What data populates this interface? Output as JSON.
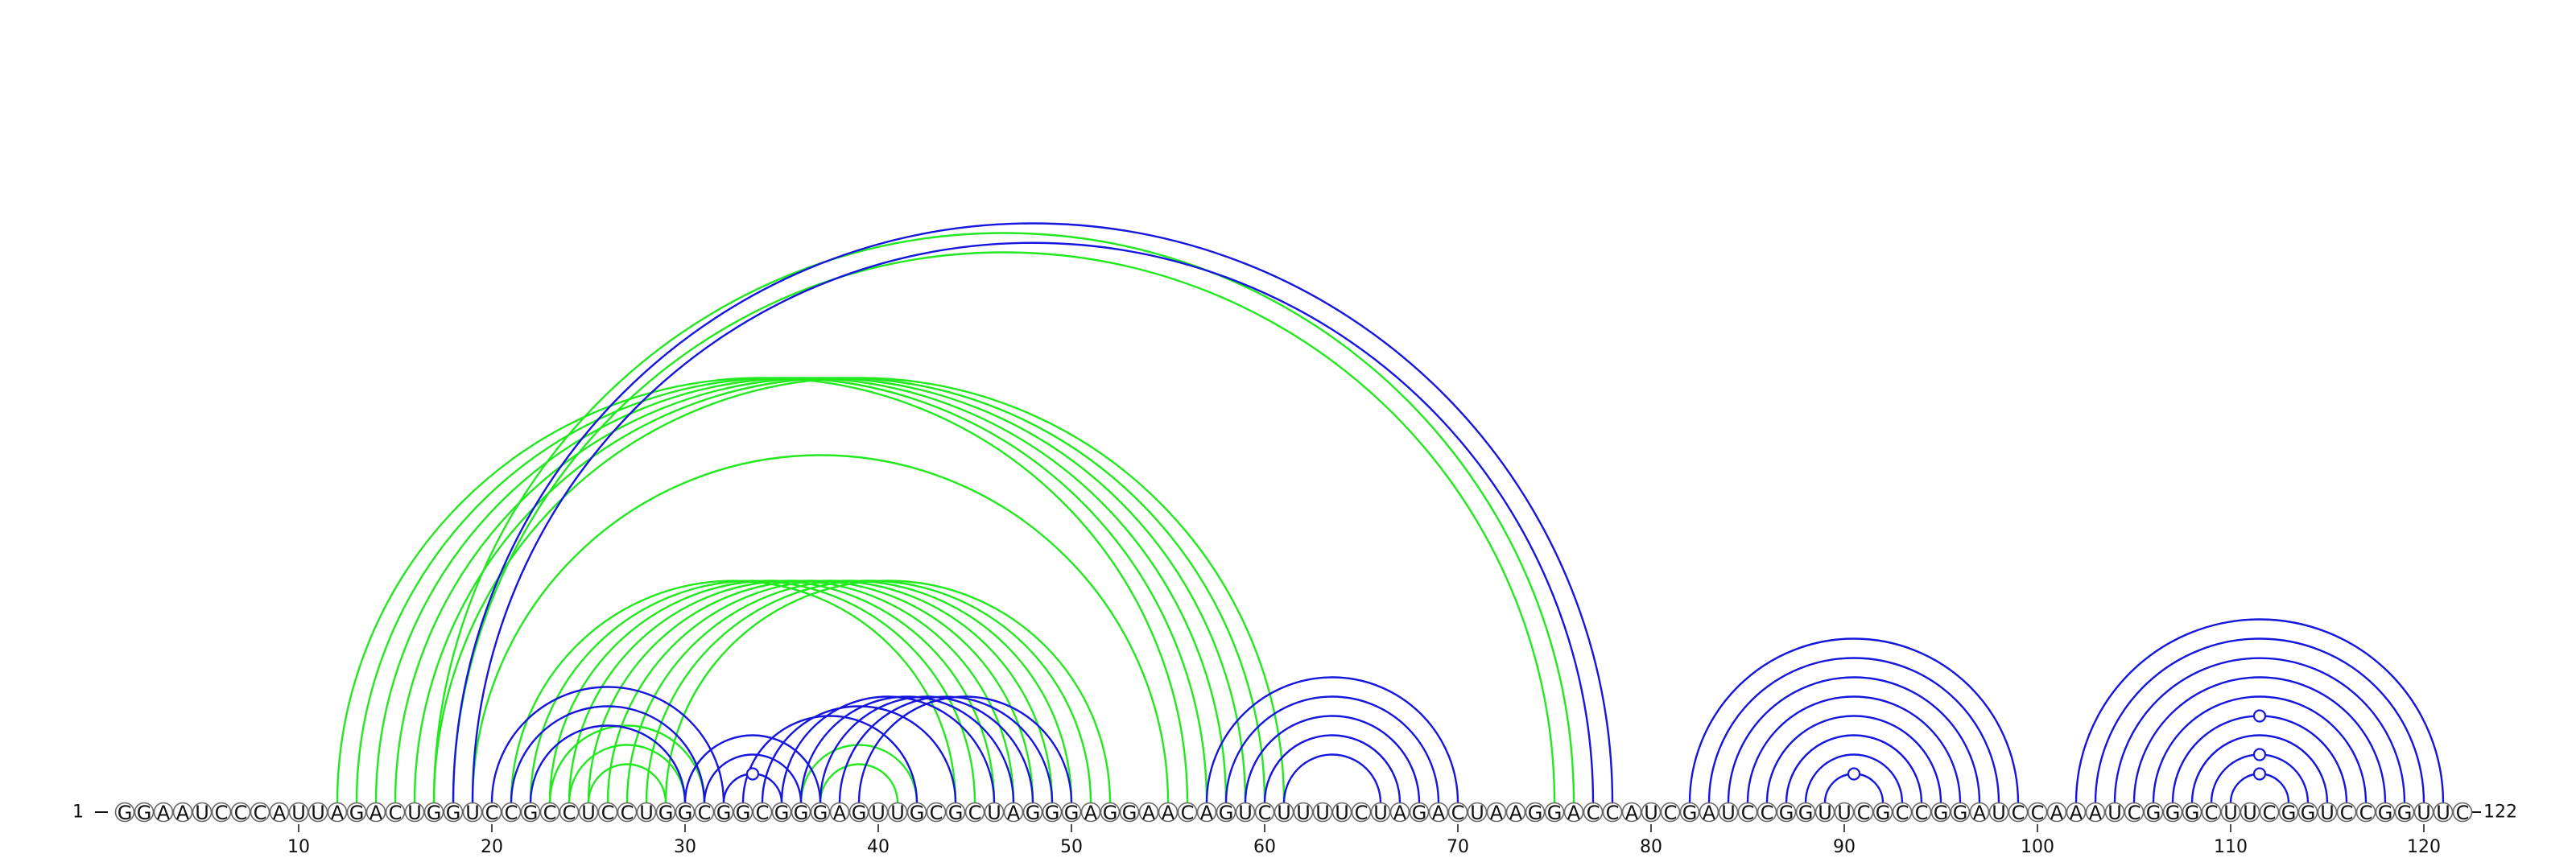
{
  "sequence": "GGAAUCCCAUUAGACUGGUCCGCCUCCUGGCGGCGGGAGUUGCGCUAGGGAGGAACAGUCUUUUCUAGACUAAGGACCAUCGAUCCGGUUCGCCGGAUCCAAAUCGGGCUUCGGUCCGGUUC",
  "start_label": "1",
  "end_label": "122",
  "ticks": [
    "10",
    "20",
    "30",
    "40",
    "50",
    "60",
    "70",
    "80",
    "90",
    "100",
    "110",
    "120"
  ],
  "colors": {
    "blue": "#1515dd",
    "green": "#22e81e",
    "circle_stroke": "#666666"
  },
  "blue_pairs": [
    [
      20,
      32
    ],
    [
      21,
      31
    ],
    [
      22,
      30
    ],
    [
      30,
      37
    ],
    [
      31,
      36
    ],
    [
      32,
      35
    ],
    [
      33,
      42
    ],
    [
      34,
      44
    ],
    [
      35,
      46
    ],
    [
      36,
      47
    ],
    [
      37,
      48
    ],
    [
      38,
      49
    ],
    [
      39,
      50
    ],
    [
      57,
      70
    ],
    [
      58,
      69
    ],
    [
      59,
      68
    ],
    [
      60,
      67
    ],
    [
      61,
      66
    ],
    [
      18,
      78
    ],
    [
      19,
      77
    ],
    [
      82,
      99
    ],
    [
      83,
      98
    ],
    [
      84,
      97
    ],
    [
      85,
      96
    ],
    [
      86,
      95
    ],
    [
      87,
      94
    ],
    [
      88,
      93
    ],
    [
      89,
      92
    ],
    [
      102,
      121
    ],
    [
      103,
      120
    ],
    [
      104,
      119
    ],
    [
      105,
      118
    ],
    [
      106,
      117
    ],
    [
      107,
      116
    ],
    [
      108,
      115
    ],
    [
      109,
      114
    ],
    [
      110,
      113
    ]
  ],
  "green_pairs": [
    [
      12,
      56
    ],
    [
      13,
      57
    ],
    [
      14,
      58
    ],
    [
      15,
      59
    ],
    [
      16,
      60
    ],
    [
      17,
      61
    ],
    [
      17,
      76
    ],
    [
      18,
      75
    ],
    [
      19,
      55
    ],
    [
      21,
      44
    ],
    [
      22,
      45
    ],
    [
      23,
      46
    ],
    [
      24,
      47
    ],
    [
      25,
      48
    ],
    [
      26,
      49
    ],
    [
      27,
      50
    ],
    [
      28,
      51
    ],
    [
      29,
      52
    ],
    [
      23,
      31
    ],
    [
      24,
      30
    ],
    [
      25,
      29
    ],
    [
      36,
      42
    ],
    [
      37,
      41
    ]
  ],
  "gu_pairs": [
    [
      32,
      35
    ],
    [
      89,
      92
    ],
    [
      110,
      113
    ],
    [
      109,
      114
    ],
    [
      107,
      116
    ]
  ]
}
